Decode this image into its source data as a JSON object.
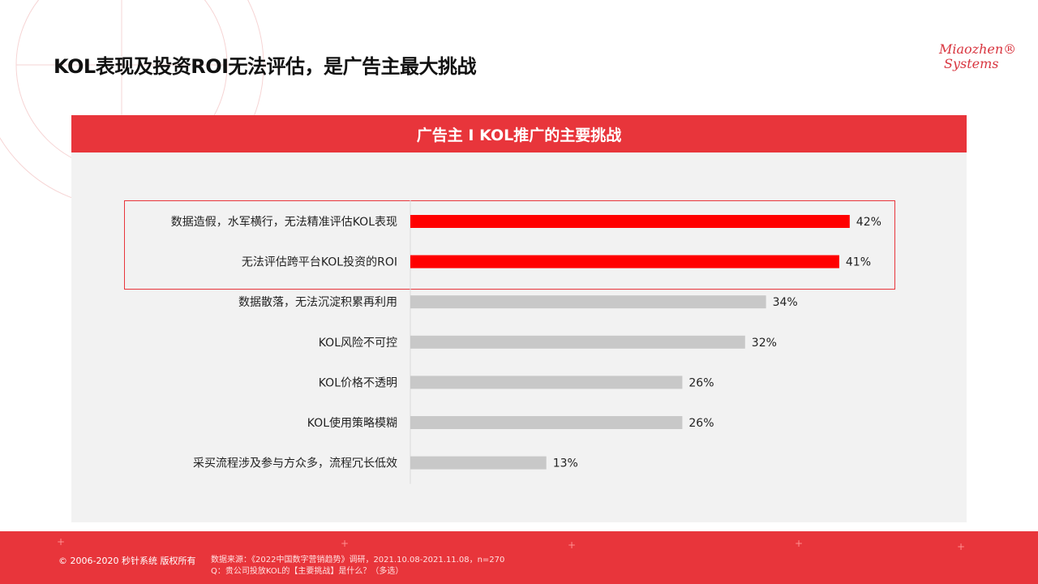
{
  "page": {
    "title": "KOL表现及投资ROI无法评估，是广告主最大挑战",
    "logo_line1": "Miaozhen®",
    "logo_line2": "Systems"
  },
  "panel": {
    "header": "广告主 I KOL推广的主要挑战"
  },
  "chart_data": {
    "type": "bar",
    "orientation": "horizontal",
    "categories": [
      "数据造假，水军横行，无法精准评估KOL表现",
      "无法评估跨平台KOL投资的ROI",
      "数据散落，无法沉淀积累再利用",
      "KOL风险不可控",
      "KOL价格不透明",
      "KOL使用策略模糊",
      "采买流程涉及参与方众多，流程冗长低效"
    ],
    "values": [
      42,
      41,
      34,
      32,
      26,
      26,
      13
    ],
    "value_labels": [
      "42%",
      "41%",
      "34%",
      "32%",
      "26%",
      "26%",
      "13%"
    ],
    "highlighted": [
      true,
      true,
      false,
      false,
      false,
      false,
      false
    ],
    "colors": {
      "highlight": "#ff0000",
      "normal": "#c8c8c8"
    },
    "xlim": [
      0,
      50
    ]
  },
  "footer": {
    "copyright": "© 2006-2020 秒针系统 版权所有",
    "source_line1": "数据来源：《2022中国数字营销趋势》调研，2021.10.08-2021.11.08，n=270",
    "source_line2": "Q：贵公司投放KOL的【主要挑战】是什么？（多选）"
  }
}
